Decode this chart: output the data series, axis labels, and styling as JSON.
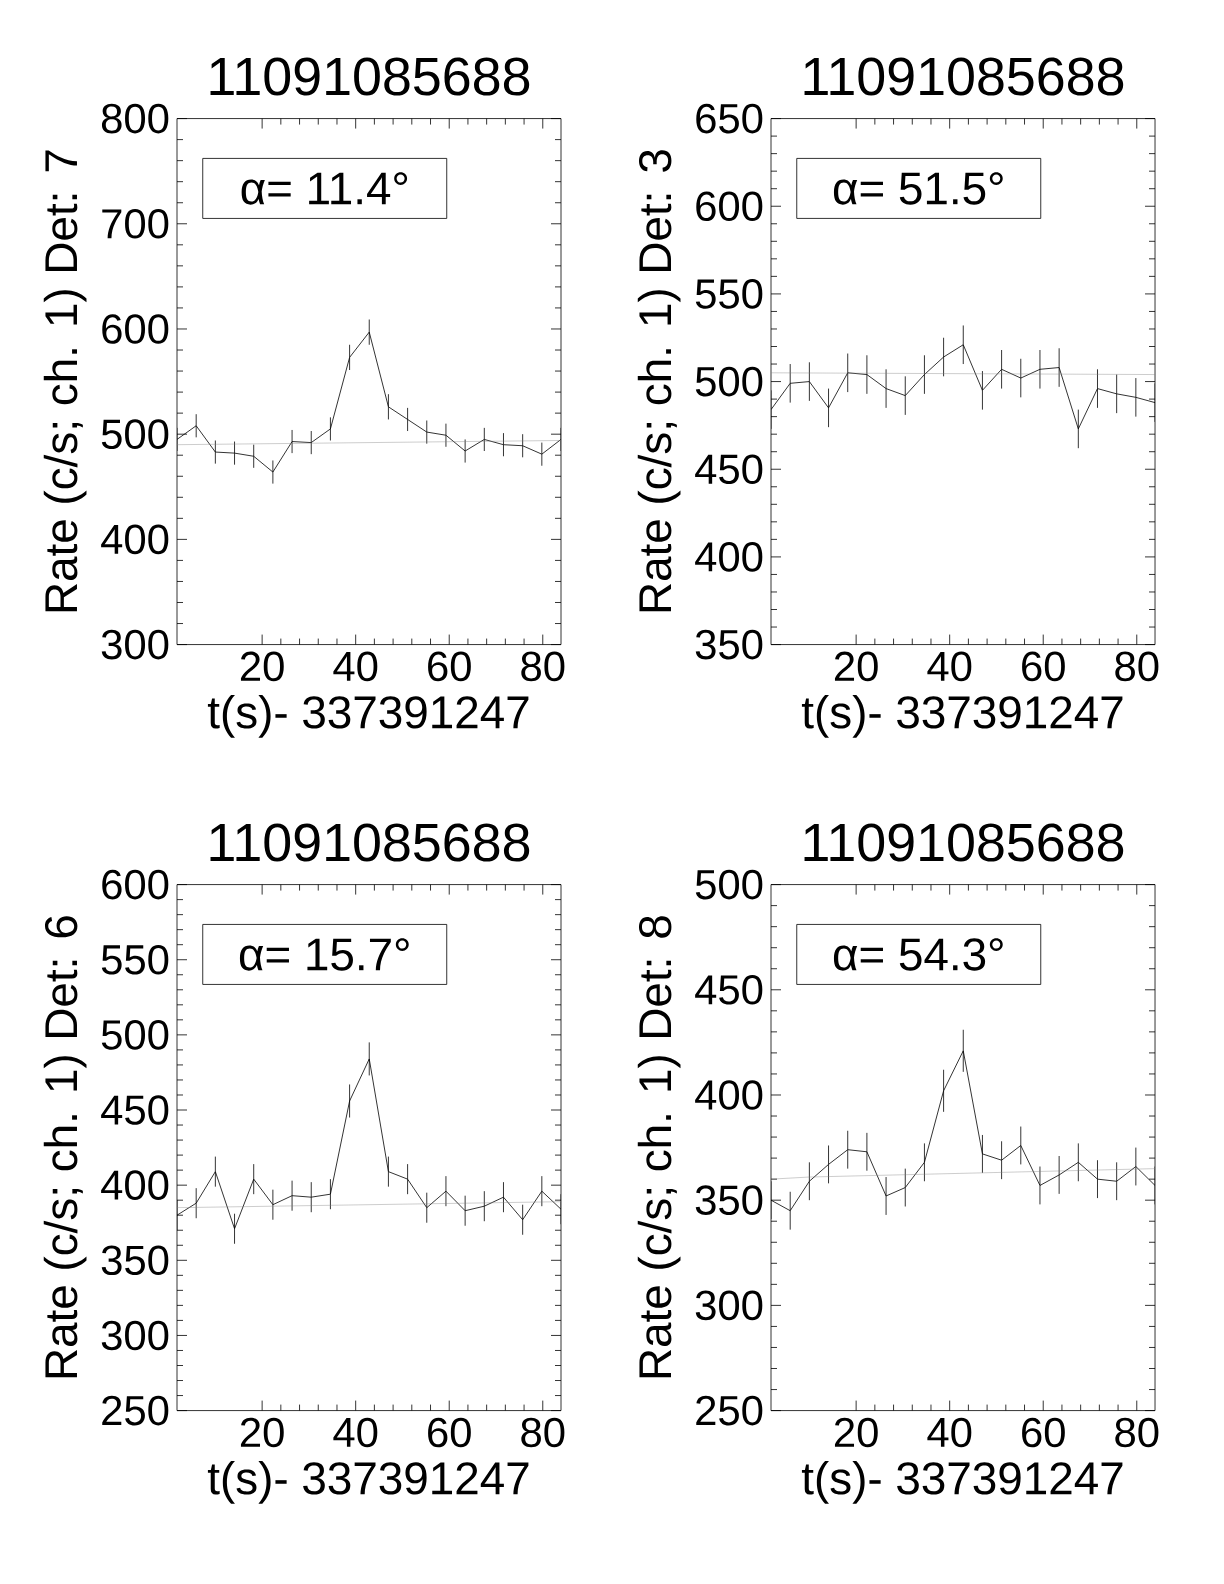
{
  "chart_data": [
    {
      "type": "line",
      "title": "11091085688",
      "xlabel": "t(s)- 337391247",
      "ylabel": "Rate (c/s; ch. 1) Det: 7",
      "annotations": [
        "α= 11.4°"
      ],
      "xlim": [
        1.8,
        83.9
      ],
      "ylim": [
        300,
        800
      ],
      "xticks": [
        20,
        40,
        60,
        80
      ],
      "yticks": [
        300,
        400,
        500,
        600,
        700,
        800
      ],
      "series": [
        {
          "color": "#000000",
          "x": [
            1.8,
            5.9,
            10.0,
            14.1,
            18.2,
            22.3,
            26.4,
            30.5,
            34.6,
            38.7,
            42.9,
            47.0,
            51.1,
            55.2,
            59.3,
            63.4,
            67.5,
            71.6,
            75.7,
            79.8,
            83.9
          ],
          "values": [
            495,
            508,
            483,
            482,
            479,
            464,
            493,
            492,
            505,
            573,
            597,
            526,
            514,
            502,
            499,
            484,
            495,
            490,
            489,
            481,
            495
          ],
          "errors": [
            11,
            11,
            11,
            11,
            11,
            11,
            11,
            11,
            11,
            12,
            12,
            12,
            11,
            11,
            11,
            11,
            11,
            11,
            11,
            11,
            11
          ]
        },
        {
          "color": "#808080",
          "x": [
            1.8,
            83.9
          ],
          "values": [
            490,
            494
          ]
        }
      ]
    },
    {
      "type": "line",
      "title": "11091085688",
      "xlabel": "t(s)- 337391247",
      "ylabel": "Rate (c/s; ch. 1) Det: 3",
      "annotations": [
        "α= 51.5°"
      ],
      "xlim": [
        1.8,
        83.9
      ],
      "ylim": [
        350,
        650
      ],
      "xticks": [
        20,
        40,
        60,
        80
      ],
      "yticks": [
        350,
        400,
        450,
        500,
        550,
        600,
        650
      ],
      "series": [
        {
          "color": "#000000",
          "x": [
            1.8,
            5.9,
            10.0,
            14.1,
            18.2,
            22.3,
            26.4,
            30.5,
            34.6,
            38.7,
            42.9,
            47.0,
            51.1,
            55.2,
            59.3,
            63.4,
            67.5,
            71.6,
            75.7,
            79.8,
            83.9
          ],
          "values": [
            484,
            499,
            500,
            485,
            505,
            504,
            496,
            492,
            504,
            514,
            521,
            495,
            507,
            502,
            507,
            508,
            473,
            496,
            493,
            491,
            488
          ],
          "errors": [
            11,
            11,
            11,
            11,
            11,
            11,
            11,
            11,
            11,
            11,
            11,
            11,
            11,
            11,
            11,
            11,
            11,
            11,
            11,
            11,
            11
          ]
        },
        {
          "color": "#808080",
          "x": [
            1.8,
            83.9
          ],
          "values": [
            505,
            504
          ]
        }
      ]
    },
    {
      "type": "line",
      "title": "11091085688",
      "xlabel": "t(s)- 337391247",
      "ylabel": "Rate (c/s; ch. 1) Det: 6",
      "annotations": [
        "α= 15.7°"
      ],
      "xlim": [
        1.8,
        83.9
      ],
      "ylim": [
        250,
        600
      ],
      "xticks": [
        20,
        40,
        60,
        80
      ],
      "yticks": [
        250,
        300,
        350,
        400,
        450,
        500,
        550,
        600
      ],
      "series": [
        {
          "color": "#000000",
          "x": [
            1.8,
            5.9,
            10.0,
            14.1,
            18.2,
            22.3,
            26.4,
            30.5,
            34.6,
            38.7,
            42.9,
            47.0,
            51.1,
            55.2,
            59.3,
            63.4,
            67.5,
            71.6,
            75.7,
            79.8,
            83.9
          ],
          "values": [
            380,
            388,
            409,
            371,
            404,
            387,
            393,
            392,
            394,
            456,
            484,
            409,
            404,
            385,
            396,
            383,
            386,
            392,
            377,
            396,
            384
          ],
          "errors": [
            10,
            10,
            10,
            10,
            10,
            10,
            10,
            10,
            10,
            11,
            11,
            10,
            10,
            10,
            10,
            10,
            10,
            10,
            10,
            10,
            10
          ]
        },
        {
          "color": "#808080",
          "x": [
            1.8,
            83.9
          ],
          "values": [
            385,
            389
          ]
        }
      ]
    },
    {
      "type": "line",
      "title": "11091085688",
      "xlabel": "t(s)- 337391247",
      "ylabel": "Rate (c/s; ch. 1) Det: 8",
      "annotations": [
        "α= 54.3°"
      ],
      "xlim": [
        1.8,
        83.9
      ],
      "ylim": [
        250,
        500
      ],
      "xticks": [
        20,
        40,
        60,
        80
      ],
      "yticks": [
        250,
        300,
        350,
        400,
        450,
        500
      ],
      "series": [
        {
          "color": "#000000",
          "x": [
            1.8,
            5.9,
            10.0,
            14.1,
            18.2,
            22.3,
            26.4,
            30.5,
            34.6,
            38.7,
            42.9,
            47.0,
            51.1,
            55.2,
            59.3,
            63.4,
            67.5,
            71.6,
            75.7,
            79.8,
            83.9
          ],
          "values": [
            350,
            345,
            359,
            367,
            374,
            373,
            352,
            356,
            368,
            402,
            421,
            372,
            369,
            376,
            357,
            362,
            368,
            360,
            359,
            366,
            357
          ],
          "errors": [
            9,
            9,
            9,
            9,
            9,
            9,
            9,
            9,
            9,
            10,
            10,
            9,
            9,
            9,
            9,
            9,
            9,
            9,
            9,
            9,
            9
          ]
        },
        {
          "color": "#808080",
          "x": [
            1.8,
            10.0,
            83.9
          ],
          "values": [
            360,
            361,
            365
          ]
        }
      ]
    }
  ]
}
